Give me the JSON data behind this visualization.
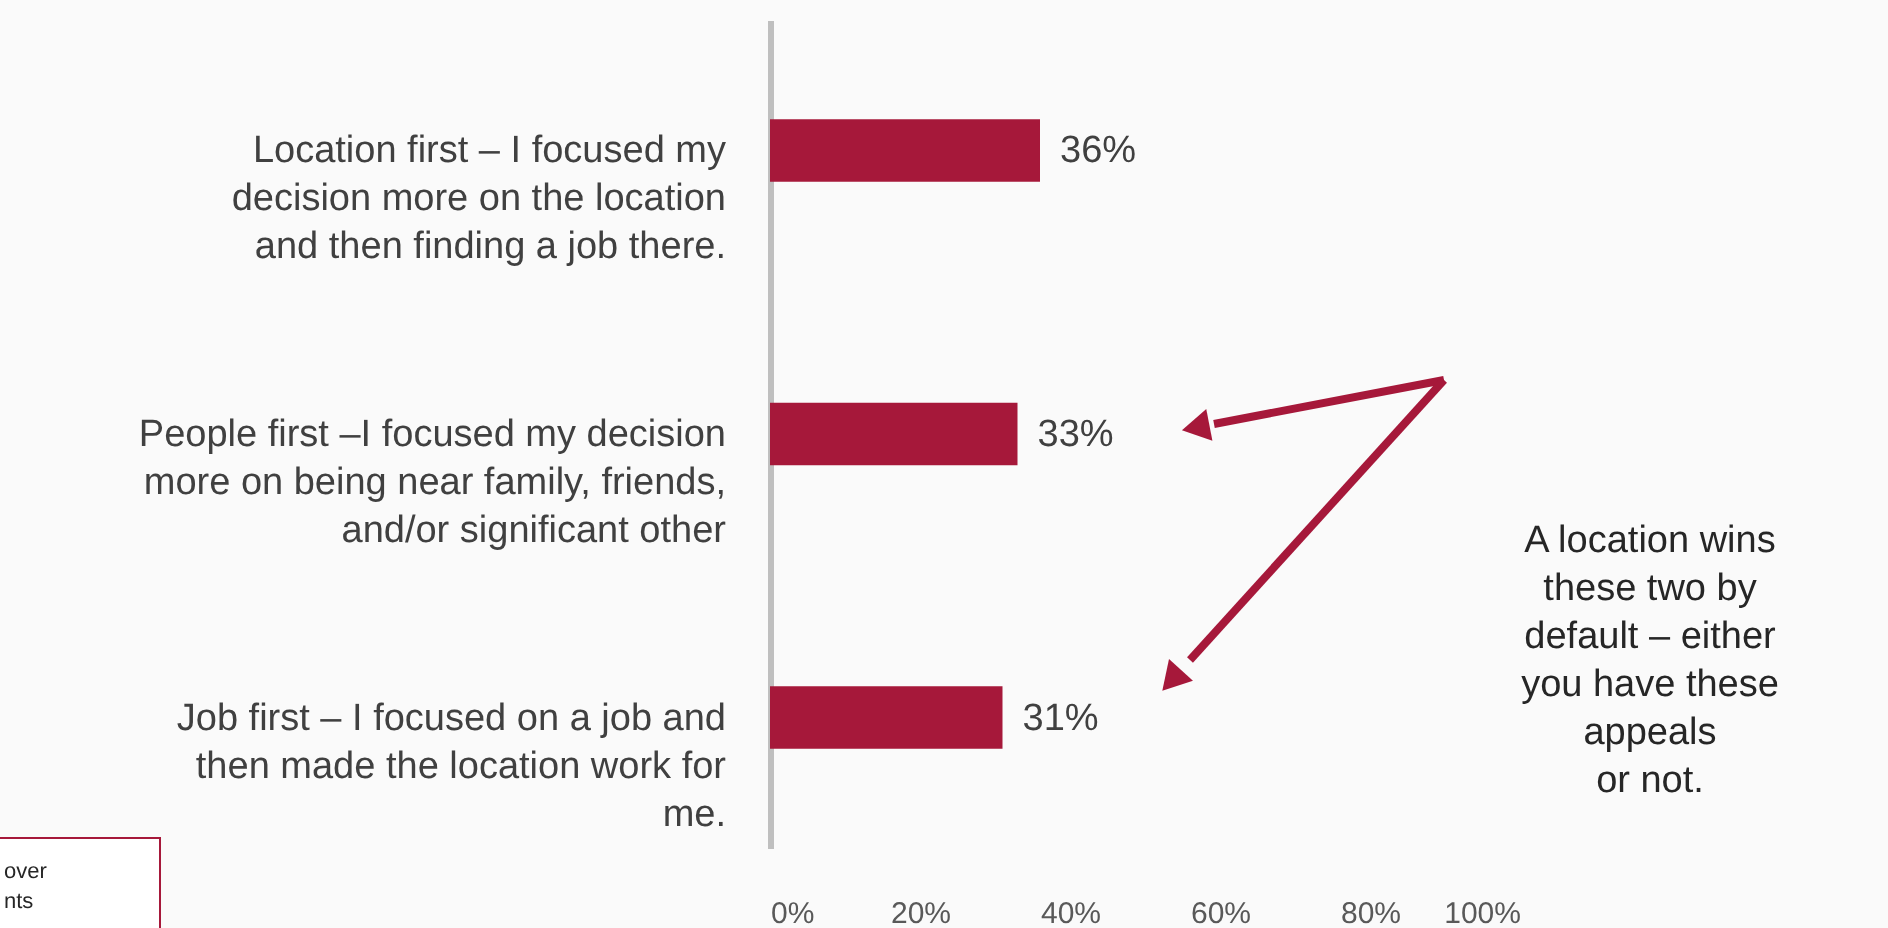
{
  "chart_data": {
    "type": "bar",
    "orientation": "horizontal",
    "categories": [
      "Location first – I focused my decision more on the location and then finding a job there.",
      "People first –I focused my decision more on being near family, friends, and/or significant other",
      "Job first – I focused on a job and then made the location work for me."
    ],
    "values": [
      36,
      33,
      31
    ],
    "color": "#a6183a",
    "value_labels": [
      "36%",
      "33%",
      "31%"
    ],
    "xlim": [
      0,
      100
    ],
    "xticks": [
      {
        "value": 0,
        "label": "0%"
      },
      {
        "value": 20,
        "label": "20%"
      },
      {
        "value": 40,
        "label": "40%"
      },
      {
        "value": 60,
        "label": "60%"
      },
      {
        "value": 80,
        "label": "80%"
      },
      {
        "value": 100,
        "label": "100%"
      }
    ],
    "grid": false,
    "annotations": [
      "A location wins\nthese two by\ndefault – either\nyou have these\nappeals\nor not.",
      "over\nnts"
    ]
  }
}
